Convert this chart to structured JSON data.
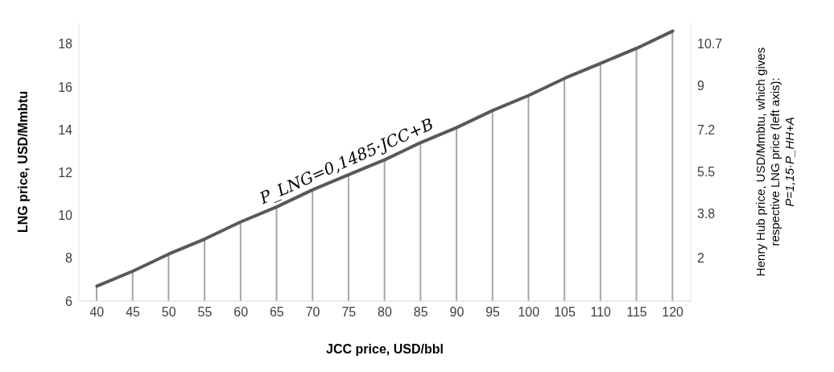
{
  "chart_data": {
    "type": "line",
    "xlabel": "JCC price, USD/bbl",
    "ylabel": "LNG price, USD/Mmbtu",
    "y2label": "Henry Hub price, USD/Mmbtu, which gives\nrespective LNG price (left axis):\nP=1,15·P_HH+A",
    "categories": [
      "40",
      "45",
      "50",
      "55",
      "60",
      "65",
      "70",
      "75",
      "80",
      "85",
      "90",
      "95",
      "100",
      "105",
      "110",
      "115",
      "120"
    ],
    "series": [
      {
        "type": "bar",
        "color": "#a6a6a6",
        "values": [
          6.7,
          7.4,
          8.2,
          8.9,
          9.7,
          10.4,
          11.2,
          11.9,
          12.6,
          13.4,
          14.1,
          14.9,
          15.6,
          16.4,
          17.1,
          17.8,
          18.6
        ]
      },
      {
        "color": "#595959",
        "values": [
          6.7,
          7.4,
          8.2,
          8.9,
          9.7,
          10.4,
          11.2,
          11.9,
          12.6,
          13.4,
          14.1,
          14.9,
          15.6,
          16.4,
          17.1,
          17.8,
          18.6
        ]
      }
    ],
    "ylim": [
      6,
      19
    ],
    "yticks": [
      6,
      8,
      10,
      12,
      14,
      16,
      18
    ],
    "y2lim": [
      0.26,
      11.57
    ],
    "y2ticks": [
      2,
      3.8,
      5.5,
      7.2,
      9,
      10.7
    ],
    "annotations": [
      {
        "text": "P_LNG=0,1485·JCC+B",
        "x": "75",
        "y": 12
      }
    ],
    "grid": false,
    "marker": "none",
    "line_style": "solid"
  }
}
